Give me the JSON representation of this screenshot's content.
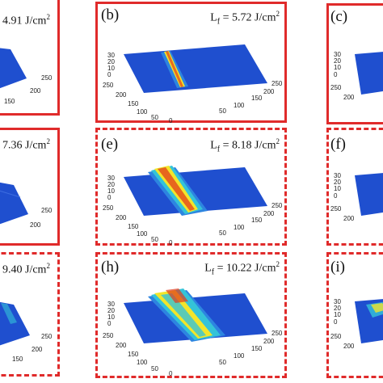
{
  "panels": [
    {
      "id": "a",
      "label": "",
      "fluence": "4.91",
      "unit": "J/cm",
      "style": "solid"
    },
    {
      "id": "b",
      "label": "(b)",
      "fluence": "5.72",
      "unit": "J/cm",
      "style": "solid"
    },
    {
      "id": "c",
      "label": "(c)",
      "fluence": "",
      "unit": "",
      "style": "solid"
    },
    {
      "id": "d",
      "label": "",
      "fluence": "7.36",
      "unit": "J/cm",
      "style": "solid"
    },
    {
      "id": "e",
      "label": "(e)",
      "fluence": "8.18",
      "unit": "J/cm",
      "style": "dashed"
    },
    {
      "id": "f",
      "label": "(f)",
      "fluence": "",
      "unit": "",
      "style": "dashed"
    },
    {
      "id": "g",
      "label": "",
      "fluence": "9.40",
      "unit": "J/cm",
      "style": "dashed"
    },
    {
      "id": "h",
      "label": "(h)",
      "fluence": "10.22",
      "unit": "J/cm",
      "style": "dashed"
    },
    {
      "id": "i",
      "label": "(i)",
      "fluence": "",
      "unit": "",
      "style": "dashed"
    }
  ],
  "symbol": "L",
  "symbol_sub": "f",
  "unit_exp": "2",
  "axis_ticks": {
    "z": [
      "30",
      "20",
      "10",
      "0"
    ],
    "y": [
      "250",
      "200",
      "150",
      "100",
      "50",
      "0"
    ],
    "x": [
      "0",
      "50",
      "100",
      "150",
      "200",
      "250"
    ]
  },
  "colors": {
    "frame": "#e02b2b",
    "surface": "#1f4fcf",
    "peak_low": "#34c3d8",
    "peak_mid": "#f2e52a",
    "peak_high": "#e33b1b"
  }
}
